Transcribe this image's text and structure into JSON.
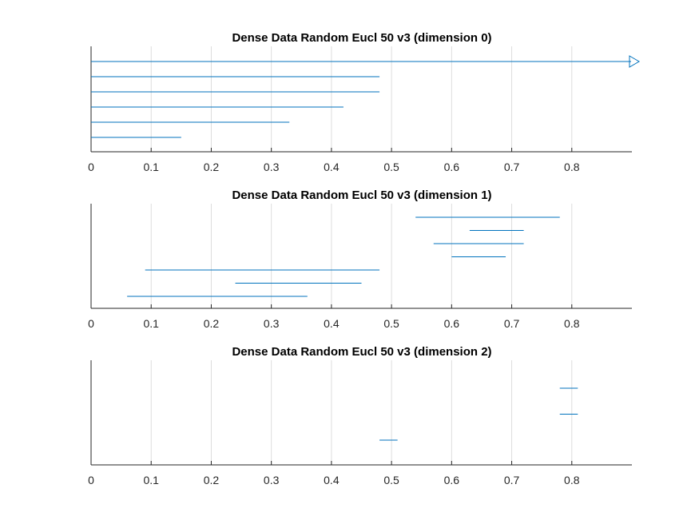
{
  "colors": {
    "series": "#0072BD",
    "axis": "#262626",
    "grid": "#dddddd",
    "title": "#000000"
  },
  "chart_data": [
    {
      "type": "barcode",
      "title": "Dense Data Random Eucl  50 v3 (dimension 0)",
      "xlabel": "",
      "ylabel": "",
      "xlim": [
        0,
        0.9
      ],
      "xticks": [
        0,
        0.1,
        0.2,
        0.3,
        0.4,
        0.5,
        0.6,
        0.7,
        0.8
      ],
      "xtick_labels": [
        "0",
        "0.1",
        "0.2",
        "0.3",
        "0.4",
        "0.5",
        "0.6",
        "0.7",
        "0.8"
      ],
      "grid": true,
      "intervals": [
        {
          "birth": 0,
          "death": null
        },
        {
          "birth": 0,
          "death": 0.48
        },
        {
          "birth": 0,
          "death": 0.48
        },
        {
          "birth": 0,
          "death": 0.42
        },
        {
          "birth": 0,
          "death": 0.33
        },
        {
          "birth": 0,
          "death": 0.15
        }
      ]
    },
    {
      "type": "barcode",
      "title": "Dense Data Random Eucl  50 v3 (dimension 1)",
      "xlabel": "",
      "ylabel": "",
      "xlim": [
        0,
        0.9
      ],
      "xticks": [
        0,
        0.1,
        0.2,
        0.3,
        0.4,
        0.5,
        0.6,
        0.7,
        0.8
      ],
      "xtick_labels": [
        "0",
        "0.1",
        "0.2",
        "0.3",
        "0.4",
        "0.5",
        "0.6",
        "0.7",
        "0.8"
      ],
      "grid": true,
      "intervals": [
        {
          "birth": 0.54,
          "death": 0.78
        },
        {
          "birth": 0.63,
          "death": 0.72
        },
        {
          "birth": 0.57,
          "death": 0.72
        },
        {
          "birth": 0.6,
          "death": 0.69
        },
        {
          "birth": 0.09,
          "death": 0.48
        },
        {
          "birth": 0.24,
          "death": 0.45
        },
        {
          "birth": 0.06,
          "death": 0.36
        }
      ]
    },
    {
      "type": "barcode",
      "title": "Dense Data Random Eucl  50 v3 (dimension 2)",
      "xlabel": "",
      "ylabel": "",
      "xlim": [
        0,
        0.9
      ],
      "xticks": [
        0,
        0.1,
        0.2,
        0.3,
        0.4,
        0.5,
        0.6,
        0.7,
        0.8
      ],
      "xtick_labels": [
        "0",
        "0.1",
        "0.2",
        "0.3",
        "0.4",
        "0.5",
        "0.6",
        "0.7",
        "0.8"
      ],
      "grid": true,
      "intervals": [
        {
          "birth": 0.78,
          "death": 0.81
        },
        {
          "birth": 0.78,
          "death": 0.81
        },
        {
          "birth": 0.48,
          "death": 0.51
        }
      ]
    }
  ]
}
